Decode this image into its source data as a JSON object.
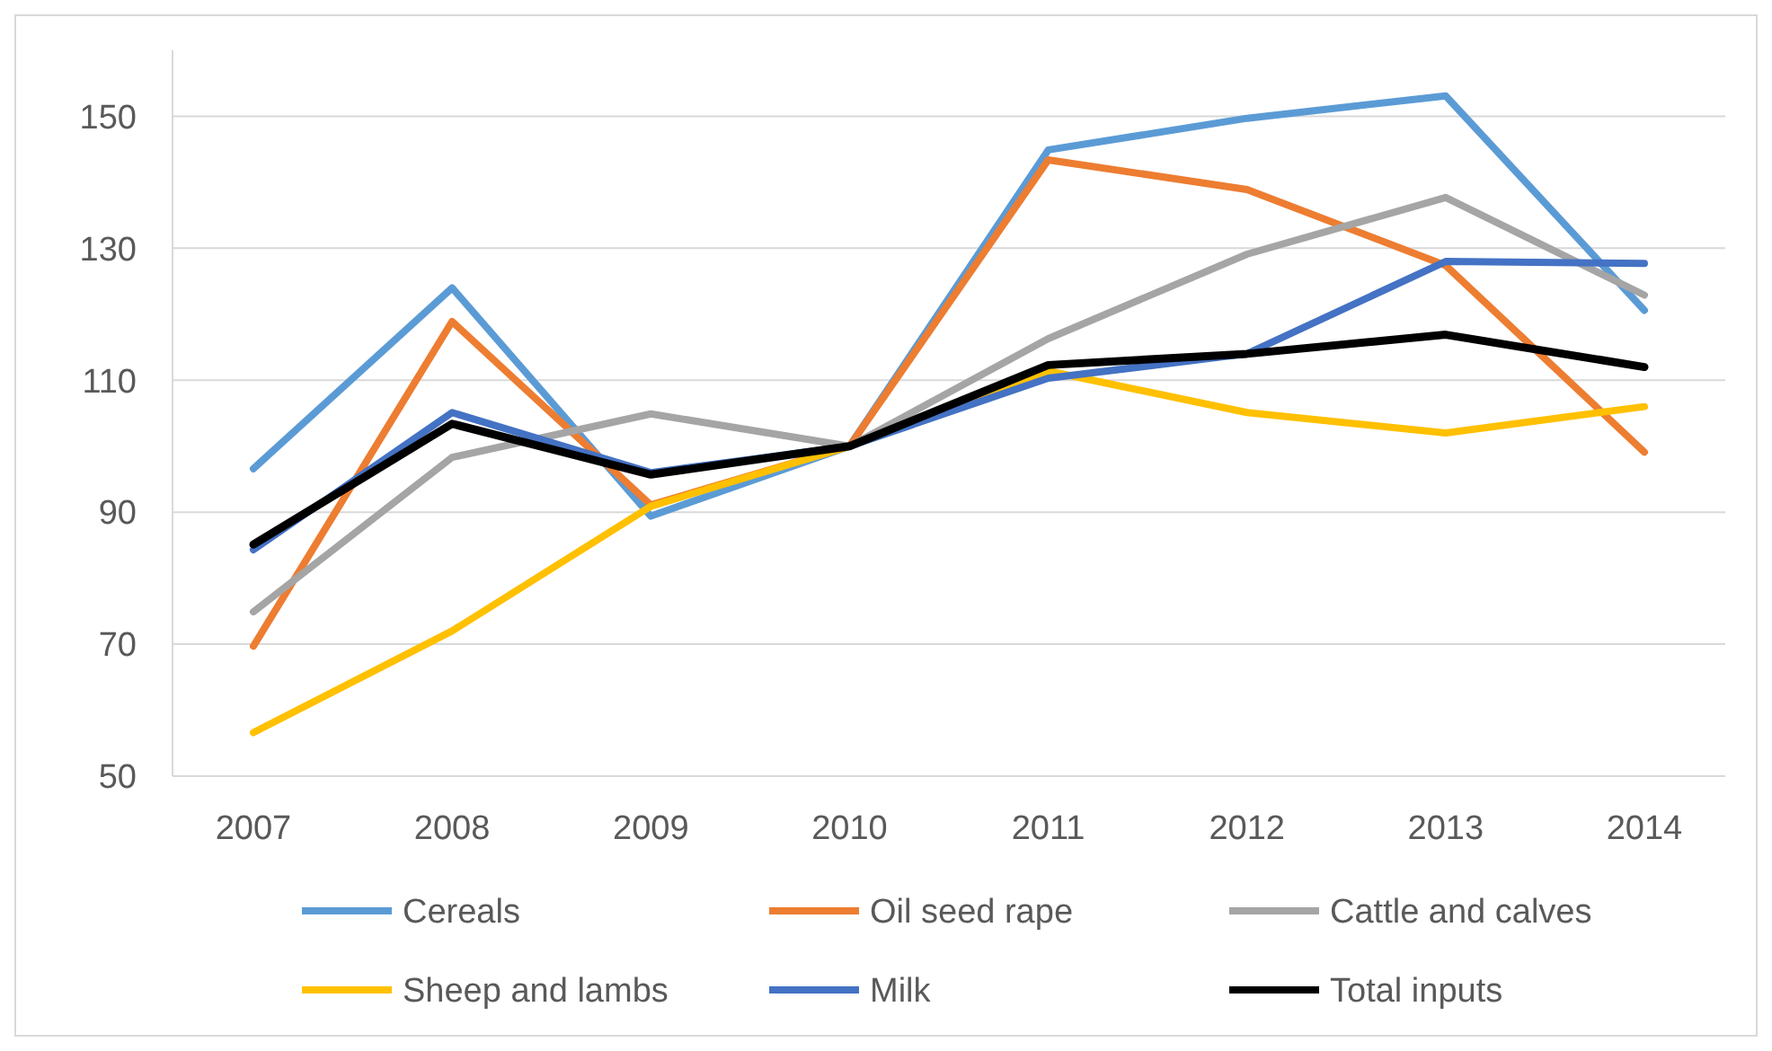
{
  "chart_data": {
    "type": "line",
    "categories": [
      "2007",
      "2008",
      "2009",
      "2010",
      "2011",
      "2012",
      "2013",
      "2014"
    ],
    "series": [
      {
        "name": "Cereals",
        "color": "#5b9bd5",
        "values": [
          96.6,
          124,
          89.4,
          100,
          144.9,
          149.7,
          153.1,
          120.6
        ]
      },
      {
        "name": "Oil seed rape",
        "color": "#ed7d31",
        "values": [
          69.7,
          118.9,
          91.1,
          100,
          143.4,
          138.9,
          127.4,
          99.1
        ]
      },
      {
        "name": "Cattle and calves",
        "color": "#a5a5a5",
        "values": [
          74.9,
          98.3,
          104.9,
          100,
          116.3,
          129.1,
          137.7,
          122.9
        ]
      },
      {
        "name": "Sheep and lambs",
        "color": "#ffc000",
        "values": [
          56.6,
          72,
          90.9,
          100,
          111.4,
          105.1,
          102,
          106
        ]
      },
      {
        "name": "Milk",
        "color": "#4472c4",
        "values": [
          84.3,
          105.1,
          96,
          100,
          110.3,
          114,
          128,
          127.7
        ]
      },
      {
        "name": "Total inputs",
        "color": "#000000",
        "values": [
          85.1,
          103.4,
          95.7,
          100,
          112.3,
          114,
          116.9,
          112
        ]
      }
    ],
    "ylim": [
      50,
      160
    ],
    "yticks": [
      50,
      70,
      90,
      110,
      130,
      150
    ],
    "grid": "y",
    "legend": "bottom",
    "marker": "none",
    "line_style": "solid"
  }
}
